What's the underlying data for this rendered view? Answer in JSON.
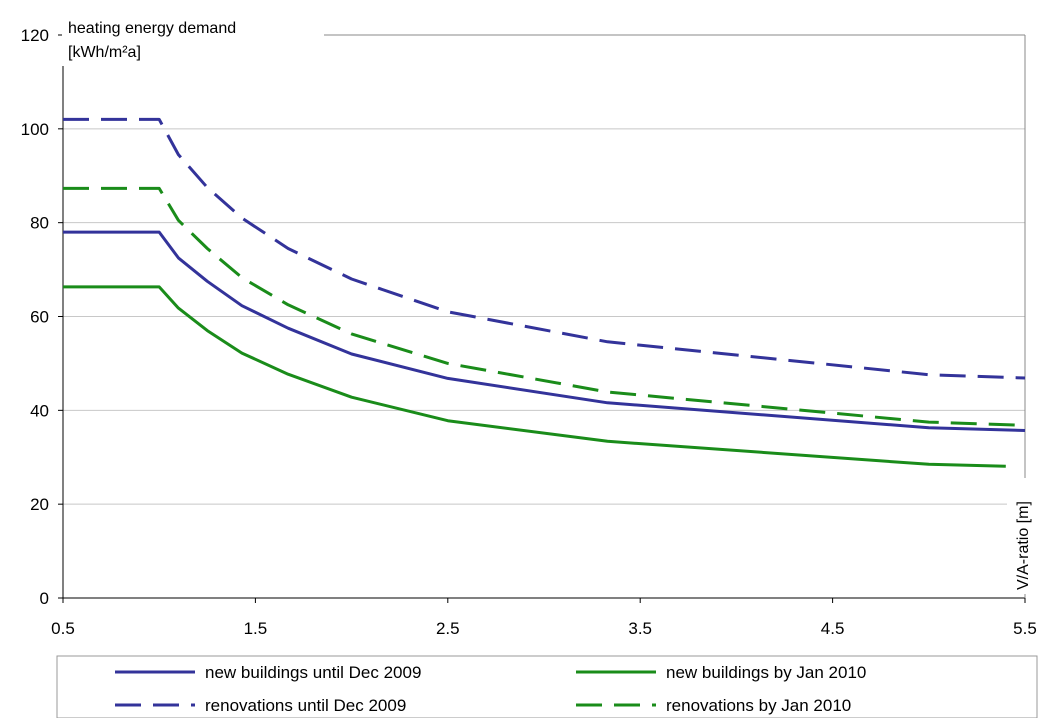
{
  "chart_data": {
    "type": "line",
    "title": "",
    "ylabel_line1": "heating energy demand",
    "ylabel_line2": "[kWh/m²a]",
    "xlabel": "V/A-ratio [m]",
    "xlim": [
      0.5,
      5.5
    ],
    "ylim": [
      0,
      120
    ],
    "xticks": [
      "0.5",
      "1.5",
      "2.5",
      "3.5",
      "4.5",
      "5.5"
    ],
    "yticks": [
      "0",
      "20",
      "40",
      "60",
      "80",
      "100",
      "120"
    ],
    "grid": "horizontal",
    "legend_position": "bottom",
    "series": [
      {
        "name": "new buildings until Dec 2009",
        "color": "#33339a",
        "dash": "solid",
        "x": [
          0.5,
          1.0,
          1.1,
          1.25,
          1.43,
          1.67,
          2.0,
          2.5,
          3.33,
          5.0,
          5.5
        ],
        "y": [
          78,
          78,
          72.5,
          67.5,
          62.3,
          57.5,
          52,
          46.8,
          41.6,
          36.3,
          35.7
        ]
      },
      {
        "name": "new buildings by Jan 2010",
        "color": "#1a8c1a",
        "dash": "solid",
        "x": [
          0.5,
          1.0,
          1.1,
          1.25,
          1.43,
          1.67,
          2.0,
          2.5,
          3.33,
          5.0,
          5.4
        ],
        "y": [
          66.3,
          66.3,
          61.8,
          57,
          52.2,
          47.7,
          42.8,
          37.8,
          33.4,
          28.5,
          28.1
        ]
      },
      {
        "name": "renovations until Dec 2009",
        "color": "#33339a",
        "dash": "dashed",
        "x": [
          0.5,
          1.0,
          1.1,
          1.25,
          1.43,
          1.67,
          2.0,
          2.5,
          3.33,
          5.0,
          5.5
        ],
        "y": [
          102,
          102,
          94.5,
          87.5,
          81,
          74.5,
          68,
          61,
          54.6,
          47.6,
          46.9
        ]
      },
      {
        "name": "renovations by Jan 2010",
        "color": "#1a8c1a",
        "dash": "dashed",
        "x": [
          0.5,
          1.0,
          1.1,
          1.25,
          1.43,
          1.67,
          2.0,
          2.5,
          3.33,
          5.0,
          5.5
        ],
        "y": [
          87.3,
          87.3,
          80.5,
          74.5,
          68.3,
          62.5,
          56.3,
          50,
          43.9,
          37.5,
          36.8
        ]
      }
    ]
  }
}
